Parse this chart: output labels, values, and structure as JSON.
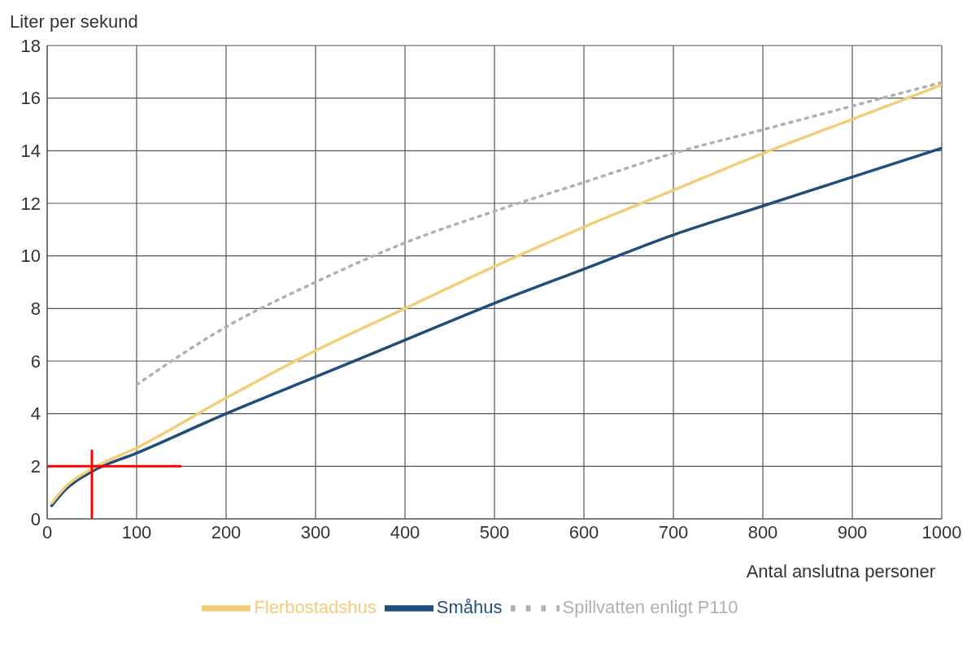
{
  "chart_data": {
    "type": "line",
    "ylabel": "Liter per sekund",
    "xlabel": "Antal anslutna personer",
    "xlim": [
      0,
      1000
    ],
    "xticks": [
      0,
      100,
      200,
      300,
      400,
      500,
      600,
      700,
      800,
      900,
      1000
    ],
    "ylim": [
      0,
      18
    ],
    "yticks": [
      0,
      2,
      4,
      6,
      8,
      10,
      12,
      14,
      16,
      18
    ],
    "grid": true,
    "legend": "bottom",
    "marker": "none",
    "series": [
      {
        "name": "Småhus",
        "color": "#1f4e79",
        "line_style": "solid",
        "x": [
          5,
          20,
          50,
          100,
          200,
          300,
          400,
          500,
          600,
          700,
          800,
          900,
          1000
        ],
        "values": [
          0.5,
          1.1,
          1.8,
          2.5,
          4.0,
          5.4,
          6.8,
          8.2,
          9.5,
          10.8,
          11.9,
          13.0,
          14.1
        ]
      },
      {
        "name": "Flerbostadshus",
        "color": "#f2cd7a",
        "line_style": "solid",
        "x": [
          5,
          20,
          50,
          100,
          200,
          300,
          400,
          500,
          600,
          700,
          800,
          900,
          1000
        ],
        "values": [
          0.6,
          1.2,
          1.9,
          2.7,
          4.6,
          6.4,
          8.0,
          9.6,
          11.1,
          12.5,
          13.9,
          15.2,
          16.5
        ]
      },
      {
        "name": "Spillvatten enligt P110",
        "color": "#b0b0b0",
        "line_style": "dotted",
        "x": [
          100,
          200,
          300,
          400,
          500,
          600,
          700,
          800,
          900,
          1000
        ],
        "values": [
          5.1,
          7.3,
          9.0,
          10.5,
          11.7,
          12.8,
          13.9,
          14.8,
          15.7,
          16.6
        ]
      }
    ],
    "ref_lines": [
      {
        "axis": "x",
        "value": 50,
        "color": "#ff0000"
      },
      {
        "axis": "y",
        "value": 2,
        "color": "#ff0000"
      }
    ]
  }
}
